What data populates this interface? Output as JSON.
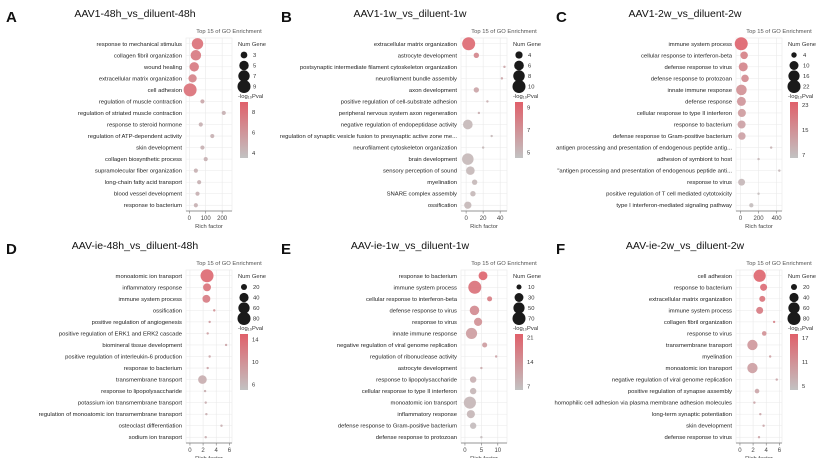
{
  "figure": {
    "subplot_header": "Top 15 of GO Enrichment",
    "x_axis_label": "Rich factor",
    "size_legend_title": "Num Gene",
    "color_legend_title": "-log₁₀Pval",
    "colors": {
      "high": "#e0606a",
      "low": "#c2c2c2",
      "grid": "#e9e9e9",
      "axis": "#777777"
    }
  },
  "chart_data": [
    {
      "letter": "A",
      "type": "scatter",
      "title": "AAV1-48h_vs_diluent-48h",
      "xlim": [
        -20,
        260
      ],
      "xticks": [
        0,
        100,
        200
      ],
      "size_legend": [
        3,
        5,
        7,
        9
      ],
      "color_ticks": [
        8,
        6,
        4
      ],
      "color_range": [
        3.5,
        9
      ],
      "categories": [
        "response to mechanical stimulus",
        "collagen fibril organization",
        "wound healing",
        "extracellular matrix organization",
        "cell adhesion",
        "regulation of muscle contraction",
        "regulation of striated muscle contraction",
        "response to steroid hormone",
        "regulation of ATP-dependent activity",
        "skin development",
        "collagen biosynthetic process",
        "supramolecular fiber organization",
        "long-chain fatty acid transport",
        "blood vessel development",
        "response to bacterium"
      ],
      "values": [
        50,
        40,
        30,
        20,
        5,
        80,
        210,
        70,
        140,
        80,
        100,
        40,
        60,
        50,
        40
      ],
      "genes": [
        7,
        6,
        5,
        4,
        9,
        2,
        2,
        2,
        2,
        2,
        2,
        2,
        2,
        2,
        2
      ],
      "logp": [
        8,
        7.5,
        7.5,
        7,
        8,
        5,
        4.5,
        4.5,
        4.5,
        4.5,
        4.5,
        4.5,
        4.5,
        4.5,
        4.5
      ]
    },
    {
      "letter": "B",
      "type": "scatter",
      "title": "AAV1-1w_vs_diluent-1w",
      "xlim": [
        -6,
        48
      ],
      "xticks": [
        0,
        20,
        40
      ],
      "size_legend": [
        4,
        6,
        8,
        10
      ],
      "color_ticks": [
        9,
        7,
        5
      ],
      "color_range": [
        4.5,
        9.5
      ],
      "categories": [
        "extracellular matrix organization",
        "astrocyte development",
        "postsynaptic intermediate filament cytoskeleton organization",
        "neurofilament bundle assembly",
        "axon development",
        "positive regulation of cell-substrate adhesion",
        "peripheral nervous system axon regeneration",
        "negative regulation of endopeptidase activity",
        "regulation of synaptic vesicle fusion to presynaptic active zone me...",
        "neurofilament cytoskeleton organization",
        "brain development",
        "sensory perception of sound",
        "myelination",
        "SNARE complex assembly",
        "ossification"
      ],
      "values": [
        3,
        12,
        45,
        42,
        12,
        25,
        15,
        2,
        30,
        20,
        2,
        5,
        10,
        8,
        2
      ],
      "genes": [
        10,
        3,
        2,
        2,
        3,
        2,
        2,
        6,
        2,
        2,
        8,
        5,
        3,
        3,
        4
      ],
      "logp": [
        9,
        7.5,
        6,
        6,
        6,
        5.5,
        5.5,
        5,
        5,
        5,
        5,
        5,
        5,
        5,
        5
      ]
    },
    {
      "letter": "C",
      "type": "scatter",
      "title": "AAV1-2w_vs_diluent-2w",
      "xlim": [
        -50,
        460
      ],
      "xticks": [
        0,
        200,
        400
      ],
      "size_legend": [
        4,
        10,
        16,
        22
      ],
      "color_ticks": [
        23,
        15,
        7
      ],
      "color_range": [
        6,
        24
      ],
      "categories": [
        "immune system process",
        "cellular response to interferon-beta",
        "defense response to virus",
        "defense response to protozoan",
        "innate immune response",
        "defense response",
        "cellular response to type II interferon",
        "response to bacterium",
        "defense response to Gram-positive bacterium",
        "antigen processing and presentation of endogenous peptide antig...",
        "adhesion of symbiont to host",
        "\"antigen processing and presentation of endogenous peptide anti...",
        "response to virus",
        "positive regulation of T cell mediated cytotoxicity",
        "type I interferon-mediated signaling pathway"
      ],
      "values": [
        8,
        40,
        30,
        50,
        10,
        10,
        15,
        12,
        15,
        340,
        200,
        430,
        12,
        200,
        120
      ],
      "genes": [
        22,
        7,
        10,
        7,
        14,
        10,
        8,
        8,
        7,
        2,
        2,
        2,
        6,
        2,
        3
      ],
      "logp": [
        23,
        18,
        17,
        16,
        15,
        14,
        13,
        12,
        12,
        9,
        8,
        8,
        8,
        7,
        7
      ]
    },
    {
      "letter": "D",
      "type": "scatter",
      "title": "AAV-ie-48h_vs_diluent-48h",
      "xlim": [
        -0.6,
        6.4
      ],
      "xticks": [
        0,
        2,
        4,
        6
      ],
      "size_legend": [
        20,
        40,
        60,
        80
      ],
      "color_ticks": [
        14,
        10,
        6
      ],
      "color_range": [
        5,
        15
      ],
      "categories": [
        "monoatomic ion transport",
        "inflammatory response",
        "immune system process",
        "ossification",
        "positive regulation of angiogenesis",
        "positive regulation of ERK1 and ERK2 cascade",
        "biomineral tissue development",
        "positive regulation of interleukin-6 production",
        "response to bacterium",
        "transmembrane transport",
        "response to lipopolysaccharide",
        "potassium ion transmembrane transport",
        "regulation of monoatomic ion transmembrane transport",
        "osteoclast differentiation",
        "sodium ion transport"
      ],
      "values": [
        2.6,
        2.6,
        2.5,
        3.7,
        3.0,
        2.7,
        5.5,
        3.0,
        2.7,
        1.9,
        2.3,
        2.4,
        2.5,
        4.8,
        2.4
      ],
      "genes": [
        80,
        30,
        30,
        10,
        12,
        12,
        8,
        10,
        12,
        35,
        12,
        10,
        10,
        6,
        10
      ],
      "logp": [
        14,
        13,
        12,
        10,
        9,
        8.5,
        8,
        8,
        8,
        7,
        7,
        7,
        7,
        7,
        7
      ]
    },
    {
      "letter": "E",
      "type": "scatter",
      "title": "AAV-ie-1w_vs_diluent-1w",
      "xlim": [
        -1.2,
        12.8
      ],
      "xticks": [
        0,
        5,
        10
      ],
      "size_legend": [
        10,
        30,
        50,
        70
      ],
      "color_ticks": [
        21,
        14,
        7
      ],
      "color_range": [
        6,
        22
      ],
      "categories": [
        "response to bacterium",
        "immune system process",
        "cellular response to interferon-beta",
        "defense response to virus",
        "response to virus",
        "innate immune response",
        "negative regulation of viral genome replication",
        "regulation of ribonuclease activity",
        "astrocyte development",
        "response to lipopolysaccharide",
        "cellular response to type II interferon",
        "monoatomic ion transport",
        "inflammatory response",
        "defense response to Gram-positive bacterium",
        "defense response to protozoan"
      ],
      "values": [
        5.5,
        3.0,
        7.5,
        2.9,
        4.0,
        2.0,
        6.0,
        9.5,
        5.0,
        2.5,
        2.5,
        1.5,
        1.8,
        2.5,
        5.0
      ],
      "genes": [
        30,
        70,
        10,
        35,
        25,
        50,
        10,
        5,
        5,
        15,
        15,
        60,
        25,
        15,
        6
      ],
      "logp": [
        21,
        19,
        17,
        15,
        14,
        12,
        12,
        11,
        10,
        9,
        8,
        8,
        8,
        7,
        7
      ]
    },
    {
      "letter": "F",
      "type": "scatter",
      "title": "AAV-ie-2w_vs_diluent-2w",
      "xlim": [
        -0.6,
        6.4
      ],
      "xticks": [
        0,
        2,
        4,
        6
      ],
      "size_legend": [
        20,
        40,
        60,
        80
      ],
      "color_ticks": [
        17,
        11,
        5
      ],
      "color_range": [
        4,
        18
      ],
      "categories": [
        "cell adhesion",
        "response to bacterium",
        "extracellular matrix organization",
        "immune system process",
        "collagen fibril organization",
        "response to virus",
        "transmembrane transport",
        "myelination",
        "monoatomic ion transport",
        "negative regulation of viral genome replication",
        "positive regulation of synapse assembly",
        "homophilic cell adhesion via plasma membrane adhesion molecules",
        "long-term synaptic potentiation",
        "skin development",
        "defense response to virus"
      ],
      "values": [
        3.0,
        3.6,
        3.4,
        3.0,
        5.2,
        3.7,
        1.9,
        4.6,
        1.9,
        5.6,
        2.6,
        2.2,
        3.1,
        3.6,
        2.9
      ],
      "genes": [
        70,
        25,
        20,
        25,
        8,
        15,
        50,
        8,
        50,
        6,
        15,
        10,
        10,
        8,
        10
      ],
      "logp": [
        17,
        16,
        15,
        14,
        13,
        11,
        10,
        9,
        9,
        8,
        8,
        8,
        8,
        8,
        8
      ]
    }
  ]
}
